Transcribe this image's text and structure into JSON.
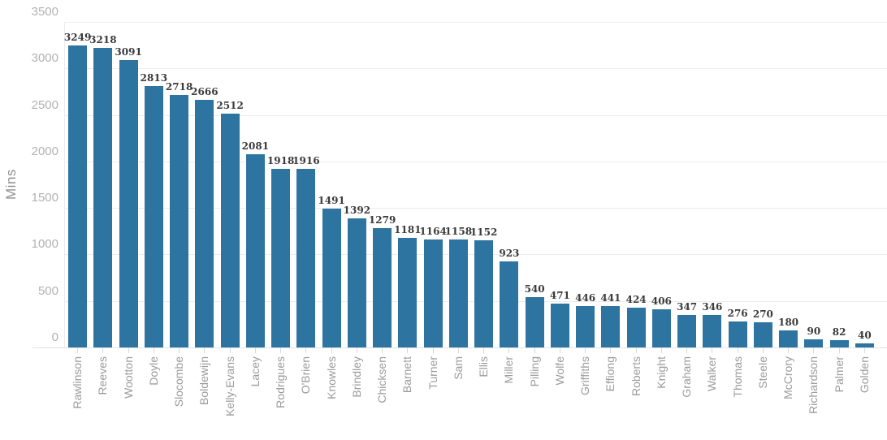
{
  "chart_data": {
    "type": "bar",
    "title": "",
    "xlabel": "",
    "ylabel": "Mins",
    "categories": [
      "Rawlinson",
      "Reeves",
      "Wootton",
      "Doyle",
      "Slocombe",
      "Boldewijn",
      "Kelly-Evans",
      "Lacey",
      "Rodrigues",
      "O'Brien",
      "Knowles",
      "Brindley",
      "Chicksen",
      "Barnett",
      "Turner",
      "Sam",
      "Ellis",
      "Miller",
      "Pilling",
      "Wolfe",
      "Griffiths",
      "Effiong",
      "Roberts",
      "Knight",
      "Graham",
      "Walker",
      "Thomas",
      "Steele",
      "McCrory",
      "Richardson",
      "Palmer",
      "Golden"
    ],
    "values": [
      3249,
      3218,
      3091,
      2813,
      2718,
      2666,
      2512,
      2081,
      1918,
      1916,
      1491,
      1392,
      1279,
      1181,
      1164,
      1158,
      1152,
      923,
      540,
      471,
      446,
      441,
      424,
      406,
      347,
      346,
      276,
      270,
      180,
      90,
      82,
      40
    ],
    "data_labels_shown": true,
    "ylim": [
      0,
      3500
    ],
    "yticks": [
      0,
      500,
      1000,
      1500,
      2000,
      2500,
      3000,
      3500
    ],
    "grid": "horizontal",
    "legend": "none",
    "bar_color": "#2e74a0",
    "value_label_color": "#3b3b3b",
    "axis_label_color": "#9b9b9b",
    "ytick_label_color": "#b2b2b2"
  }
}
